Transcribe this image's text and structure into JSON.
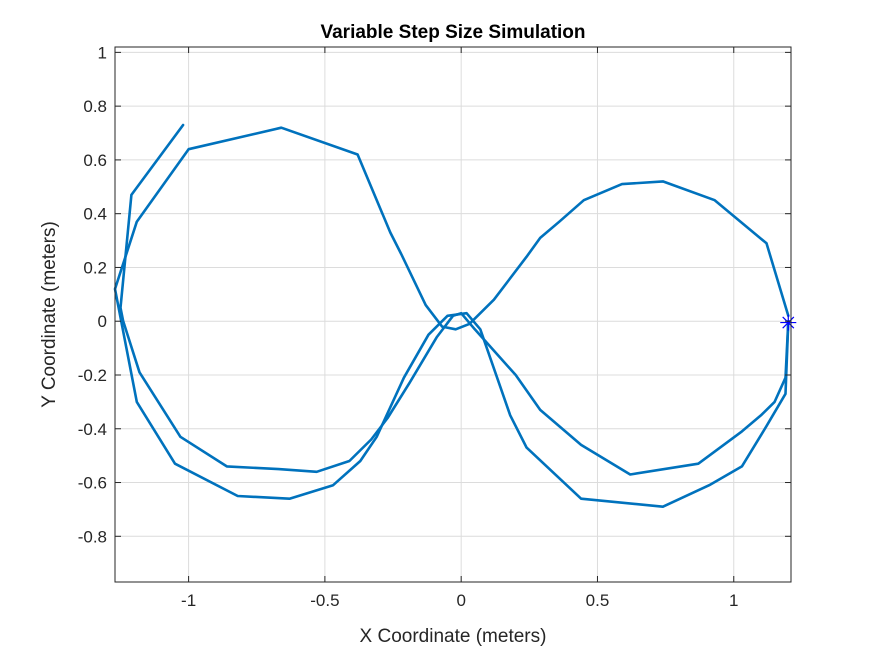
{
  "chart_data": {
    "type": "line",
    "title": "Variable Step Size Simulation",
    "xlabel": "X Coordinate (meters)",
    "ylabel": "Y Coordinate (meters)",
    "xlim": [
      -1.27,
      1.21
    ],
    "ylim": [
      -0.97,
      1.02
    ],
    "x_ticks": [
      -1,
      -0.5,
      0,
      0.5,
      1
    ],
    "x_tick_labels": [
      "-1",
      "-0.5",
      "0",
      "0.5",
      "1"
    ],
    "y_ticks": [
      -0.8,
      -0.6,
      -0.4,
      -0.2,
      0,
      0.2,
      0.4,
      0.6,
      0.8,
      1
    ],
    "y_tick_labels": [
      "-0.8",
      "-0.6",
      "-0.4",
      "-0.2",
      "0",
      "0.2",
      "0.4",
      "0.6",
      "0.8",
      "1"
    ],
    "grid": true,
    "colors": {
      "line": "#0072BD",
      "marker": "#0000FF",
      "grid": "#dcdcdc",
      "axes": "#262626"
    },
    "series": [
      {
        "x": [
          1.2,
          1.19,
          1.15,
          1.1,
          1.03,
          0.87,
          0.62,
          0.44,
          0.29,
          0.2,
          0.05,
          0.0,
          -0.03,
          -0.09,
          -0.19,
          -0.27,
          -0.33,
          -0.41,
          -0.53,
          -0.67,
          -0.86,
          -1.03,
          -1.18,
          -1.24,
          -1.25,
          -1.21,
          -1.02
        ],
        "y": [
          0.0,
          -0.21,
          -0.3,
          -0.35,
          -0.41,
          -0.53,
          -0.57,
          -0.46,
          -0.33,
          -0.2,
          -0.03,
          0.03,
          0.02,
          -0.06,
          -0.23,
          -0.36,
          -0.44,
          -0.52,
          -0.56,
          -0.55,
          -0.54,
          -0.43,
          -0.19,
          0.0,
          0.05,
          0.47,
          0.73
        ],
        "marker": "line"
      },
      {
        "x": [
          1.2,
          1.12,
          0.93,
          0.74,
          0.59,
          0.45,
          0.36,
          0.29,
          0.24,
          0.12,
          0.03,
          -0.02,
          -0.07,
          -0.13,
          -0.22,
          -0.26,
          -0.38,
          -0.66,
          -1.0,
          -1.19,
          -1.27,
          -1.19,
          -1.05,
          -0.82,
          -0.63,
          -0.47,
          -0.37,
          -0.31,
          -0.21,
          -0.12,
          -0.05,
          0.02,
          0.07,
          0.18,
          0.24,
          0.44,
          0.74,
          0.91,
          1.03,
          1.12,
          1.19,
          1.2
        ],
        "y": [
          0.02,
          0.29,
          0.45,
          0.52,
          0.51,
          0.45,
          0.37,
          0.31,
          0.24,
          0.08,
          -0.01,
          -0.03,
          -0.02,
          0.06,
          0.25,
          0.33,
          0.62,
          0.72,
          0.64,
          0.37,
          0.12,
          -0.3,
          -0.53,
          -0.65,
          -0.66,
          -0.61,
          -0.52,
          -0.43,
          -0.21,
          -0.05,
          0.02,
          0.03,
          -0.03,
          -0.35,
          -0.47,
          -0.66,
          -0.69,
          -0.61,
          -0.54,
          -0.39,
          -0.27,
          0.0
        ],
        "marker": "line"
      },
      {
        "x": [
          1.2
        ],
        "y": [
          -0.005
        ],
        "marker": "asterisk"
      }
    ]
  }
}
